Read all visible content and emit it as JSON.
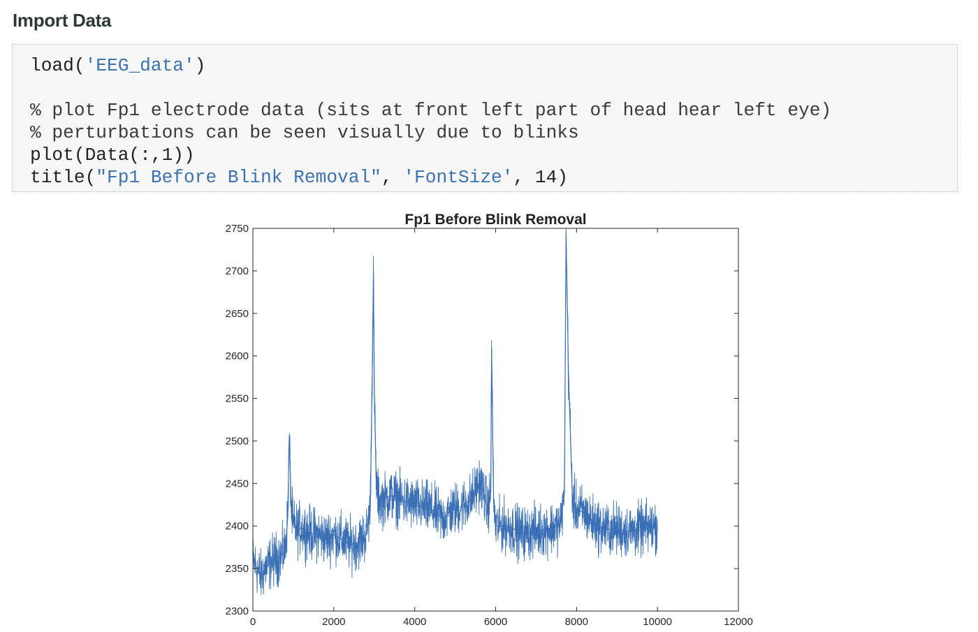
{
  "section": {
    "heading": "Import Data"
  },
  "code": {
    "lines": [
      {
        "segments": [
          {
            "text": "load(",
            "kind": "plain"
          },
          {
            "text": "'EEG_data'",
            "kind": "string"
          },
          {
            "text": ")",
            "kind": "plain"
          }
        ]
      },
      {
        "segments": []
      },
      {
        "segments": [
          {
            "text": "% plot Fp1 electrode data (sits at front left part of head hear left eye)",
            "kind": "comment"
          }
        ]
      },
      {
        "segments": [
          {
            "text": "% perturbations can be seen visually due to blinks",
            "kind": "comment"
          }
        ]
      },
      {
        "segments": [
          {
            "text": "plot(Data(:,1))",
            "kind": "plain"
          }
        ]
      },
      {
        "segments": [
          {
            "text": "title(",
            "kind": "plain"
          },
          {
            "text": "\"Fp1 Before Blink Removal\"",
            "kind": "string"
          },
          {
            "text": ", ",
            "kind": "plain"
          },
          {
            "text": "'FontSize'",
            "kind": "string"
          },
          {
            "text": ", 14)",
            "kind": "plain"
          }
        ]
      }
    ]
  },
  "colors": {
    "line": "#3a6fb5",
    "string": "#3c72ad",
    "axis": "#262626"
  },
  "chart_data": {
    "type": "line",
    "title": "Fp1 Before Blink Removal",
    "xlabel": "",
    "ylabel": "",
    "xlim": [
      0,
      12000
    ],
    "ylim": [
      2300,
      2750
    ],
    "xticks": [
      0,
      2000,
      4000,
      6000,
      8000,
      10000,
      12000
    ],
    "yticks": [
      2300,
      2350,
      2400,
      2450,
      2500,
      2550,
      2600,
      2650,
      2700,
      2750
    ],
    "grid": false,
    "legend": "none",
    "series": [
      {
        "x": [
          0,
          100,
          200,
          300,
          400,
          500,
          600,
          700,
          800,
          860,
          900,
          920,
          950,
          1000,
          1100,
          1200,
          1400,
          1600,
          1800,
          2000,
          2200,
          2400,
          2600,
          2800,
          2900,
          2950,
          2980,
          3000,
          3050,
          3100,
          3200,
          3400,
          3600,
          3800,
          4000,
          4200,
          4400,
          4600,
          4700,
          4800,
          5000,
          5200,
          5400,
          5600,
          5700,
          5800,
          5880,
          5900,
          5950,
          6000,
          6200,
          6400,
          6600,
          6800,
          7000,
          7200,
          7400,
          7600,
          7700,
          7740,
          7800,
          7900,
          8000,
          8200,
          8400,
          8600,
          8800,
          9000,
          9200,
          9400,
          9600,
          9800,
          10000
        ],
        "y": [
          2360,
          2350,
          2340,
          2350,
          2355,
          2360,
          2362,
          2365,
          2372,
          2410,
          2505,
          2470,
          2420,
          2400,
          2395,
          2398,
          2392,
          2390,
          2385,
          2390,
          2384,
          2378,
          2380,
          2390,
          2420,
          2580,
          2700,
          2560,
          2450,
          2432,
          2430,
          2436,
          2432,
          2428,
          2425,
          2422,
          2420,
          2412,
          2408,
          2414,
          2420,
          2424,
          2432,
          2452,
          2440,
          2420,
          2440,
          2610,
          2430,
          2400,
          2400,
          2398,
          2392,
          2392,
          2394,
          2396,
          2398,
          2402,
          2440,
          2745,
          2580,
          2430,
          2420,
          2415,
          2405,
          2398,
          2396,
          2396,
          2394,
          2394,
          2396,
          2398,
          2400
        ]
      }
    ]
  }
}
